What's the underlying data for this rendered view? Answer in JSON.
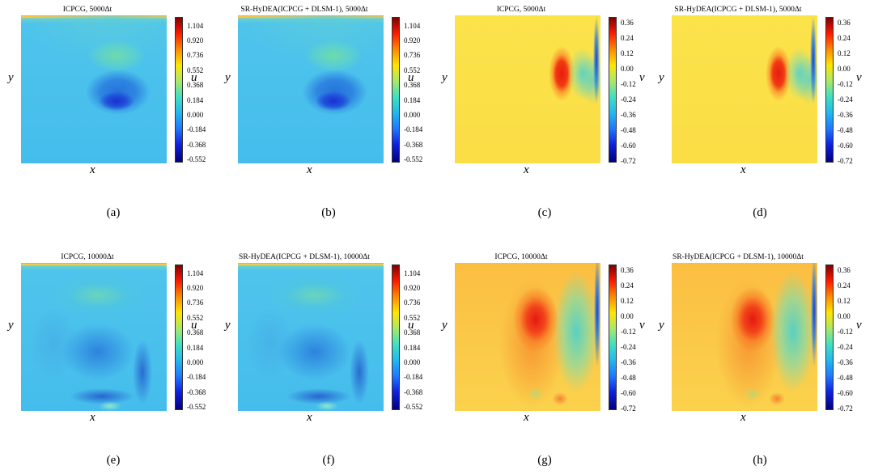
{
  "panels": [
    {
      "title": "ICPCG, 5000Δt",
      "xlabel": "x",
      "ylabel": "y",
      "var": "u",
      "colormap": "u",
      "ticks": [
        "1.104",
        "0.920",
        "0.736",
        "0.552",
        "0.368",
        "0.184",
        "0.000",
        "-0.184",
        "-0.368",
        "-0.552"
      ],
      "label": "(a)"
    },
    {
      "title": "SR-HyDEA(ICPCG + DLSM-1), 5000Δt",
      "xlabel": "x",
      "ylabel": "y",
      "var": "u",
      "colormap": "u",
      "ticks": [
        "1.104",
        "0.920",
        "0.736",
        "0.552",
        "0.368",
        "0.184",
        "0.000",
        "-0.184",
        "-0.368",
        "-0.552"
      ],
      "label": "(b)"
    },
    {
      "title": "ICPCG, 5000Δt",
      "xlabel": "x",
      "ylabel": "y",
      "var": "v",
      "colormap": "v",
      "ticks": [
        "0.36",
        "0.24",
        "0.12",
        "0.00",
        "-0.12",
        "-0.24",
        "-0.36",
        "-0.48",
        "-0.60",
        "-0.72"
      ],
      "label": "(c)"
    },
    {
      "title": "SR-HyDEA(ICPCG + DLSM-1), 5000Δt",
      "xlabel": "x",
      "ylabel": "y",
      "var": "v",
      "colormap": "v",
      "ticks": [
        "0.36",
        "0.24",
        "0.12",
        "0.00",
        "-0.12",
        "-0.24",
        "-0.36",
        "-0.48",
        "-0.60",
        "-0.72"
      ],
      "label": "(d)"
    },
    {
      "title": "ICPCG, 10000Δt",
      "xlabel": "x",
      "ylabel": "y",
      "var": "u",
      "colormap": "u",
      "ticks": [
        "1.104",
        "0.920",
        "0.736",
        "0.552",
        "0.368",
        "0.184",
        "0.000",
        "-0.184",
        "-0.368",
        "-0.552"
      ],
      "label": "(e)"
    },
    {
      "title": "SR-HyDEA(ICPCG + DLSM-1), 10000Δt",
      "xlabel": "x",
      "ylabel": "y",
      "var": "u",
      "colormap": "u",
      "ticks": [
        "1.104",
        "0.920",
        "0.736",
        "0.552",
        "0.368",
        "0.184",
        "0.000",
        "-0.184",
        "-0.368",
        "-0.552"
      ],
      "label": "(f)"
    },
    {
      "title": "ICPCG, 10000Δt",
      "xlabel": "x",
      "ylabel": "y",
      "var": "v",
      "colormap": "v",
      "ticks": [
        "0.36",
        "0.24",
        "0.12",
        "0.00",
        "-0.12",
        "-0.24",
        "-0.36",
        "-0.48",
        "-0.60",
        "-0.72"
      ],
      "label": "(g)"
    },
    {
      "title": "SR-HyDEA(ICPCG + DLSM-1), 10000Δt",
      "xlabel": "x",
      "ylabel": "y",
      "var": "v",
      "colormap": "v",
      "ticks": [
        "0.36",
        "0.24",
        "0.12",
        "0.00",
        "-0.12",
        "-0.24",
        "-0.36",
        "-0.48",
        "-0.60",
        "-0.72"
      ],
      "label": "(h)"
    }
  ]
}
